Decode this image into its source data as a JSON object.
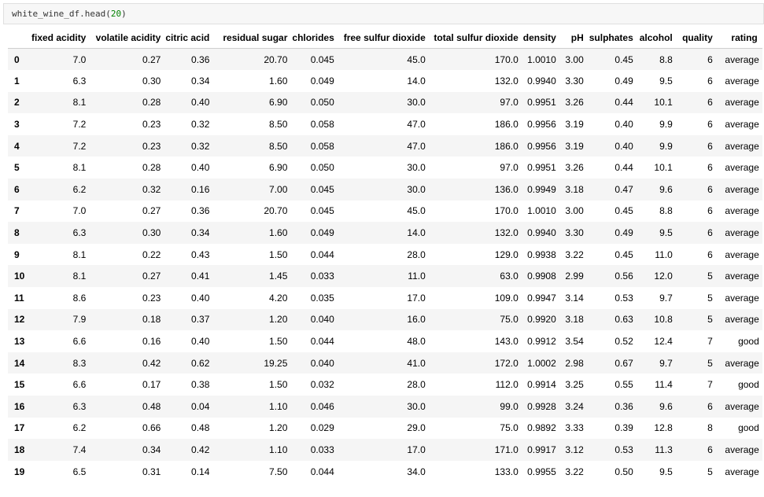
{
  "cell": {
    "code_prefix": "white_wine_df.head(",
    "code_arg": "20",
    "code_suffix": ")"
  },
  "table": {
    "columns": [
      "fixed acidity",
      "volatile acidity",
      "citric acid",
      "residual sugar",
      "chlorides",
      "free sulfur dioxide",
      "total sulfur dioxide",
      "density",
      "pH",
      "sulphates",
      "alcohol",
      "quality",
      "rating"
    ],
    "rows": [
      [
        "0",
        "7.0",
        "0.27",
        "0.36",
        "20.70",
        "0.045",
        "45.0",
        "170.0",
        "1.0010",
        "3.00",
        "0.45",
        "8.8",
        "6",
        "average"
      ],
      [
        "1",
        "6.3",
        "0.30",
        "0.34",
        "1.60",
        "0.049",
        "14.0",
        "132.0",
        "0.9940",
        "3.30",
        "0.49",
        "9.5",
        "6",
        "average"
      ],
      [
        "2",
        "8.1",
        "0.28",
        "0.40",
        "6.90",
        "0.050",
        "30.0",
        "97.0",
        "0.9951",
        "3.26",
        "0.44",
        "10.1",
        "6",
        "average"
      ],
      [
        "3",
        "7.2",
        "0.23",
        "0.32",
        "8.50",
        "0.058",
        "47.0",
        "186.0",
        "0.9956",
        "3.19",
        "0.40",
        "9.9",
        "6",
        "average"
      ],
      [
        "4",
        "7.2",
        "0.23",
        "0.32",
        "8.50",
        "0.058",
        "47.0",
        "186.0",
        "0.9956",
        "3.19",
        "0.40",
        "9.9",
        "6",
        "average"
      ],
      [
        "5",
        "8.1",
        "0.28",
        "0.40",
        "6.90",
        "0.050",
        "30.0",
        "97.0",
        "0.9951",
        "3.26",
        "0.44",
        "10.1",
        "6",
        "average"
      ],
      [
        "6",
        "6.2",
        "0.32",
        "0.16",
        "7.00",
        "0.045",
        "30.0",
        "136.0",
        "0.9949",
        "3.18",
        "0.47",
        "9.6",
        "6",
        "average"
      ],
      [
        "7",
        "7.0",
        "0.27",
        "0.36",
        "20.70",
        "0.045",
        "45.0",
        "170.0",
        "1.0010",
        "3.00",
        "0.45",
        "8.8",
        "6",
        "average"
      ],
      [
        "8",
        "6.3",
        "0.30",
        "0.34",
        "1.60",
        "0.049",
        "14.0",
        "132.0",
        "0.9940",
        "3.30",
        "0.49",
        "9.5",
        "6",
        "average"
      ],
      [
        "9",
        "8.1",
        "0.22",
        "0.43",
        "1.50",
        "0.044",
        "28.0",
        "129.0",
        "0.9938",
        "3.22",
        "0.45",
        "11.0",
        "6",
        "average"
      ],
      [
        "10",
        "8.1",
        "0.27",
        "0.41",
        "1.45",
        "0.033",
        "11.0",
        "63.0",
        "0.9908",
        "2.99",
        "0.56",
        "12.0",
        "5",
        "average"
      ],
      [
        "11",
        "8.6",
        "0.23",
        "0.40",
        "4.20",
        "0.035",
        "17.0",
        "109.0",
        "0.9947",
        "3.14",
        "0.53",
        "9.7",
        "5",
        "average"
      ],
      [
        "12",
        "7.9",
        "0.18",
        "0.37",
        "1.20",
        "0.040",
        "16.0",
        "75.0",
        "0.9920",
        "3.18",
        "0.63",
        "10.8",
        "5",
        "average"
      ],
      [
        "13",
        "6.6",
        "0.16",
        "0.40",
        "1.50",
        "0.044",
        "48.0",
        "143.0",
        "0.9912",
        "3.54",
        "0.52",
        "12.4",
        "7",
        "good"
      ],
      [
        "14",
        "8.3",
        "0.42",
        "0.62",
        "19.25",
        "0.040",
        "41.0",
        "172.0",
        "1.0002",
        "2.98",
        "0.67",
        "9.7",
        "5",
        "average"
      ],
      [
        "15",
        "6.6",
        "0.17",
        "0.38",
        "1.50",
        "0.032",
        "28.0",
        "112.0",
        "0.9914",
        "3.25",
        "0.55",
        "11.4",
        "7",
        "good"
      ],
      [
        "16",
        "6.3",
        "0.48",
        "0.04",
        "1.10",
        "0.046",
        "30.0",
        "99.0",
        "0.9928",
        "3.24",
        "0.36",
        "9.6",
        "6",
        "average"
      ],
      [
        "17",
        "6.2",
        "0.66",
        "0.48",
        "1.20",
        "0.029",
        "29.0",
        "75.0",
        "0.9892",
        "3.33",
        "0.39",
        "12.8",
        "8",
        "good"
      ],
      [
        "18",
        "7.4",
        "0.34",
        "0.42",
        "1.10",
        "0.033",
        "17.0",
        "171.0",
        "0.9917",
        "3.12",
        "0.53",
        "11.3",
        "6",
        "average"
      ],
      [
        "19",
        "6.5",
        "0.31",
        "0.14",
        "7.50",
        "0.044",
        "34.0",
        "133.0",
        "0.9955",
        "3.22",
        "0.50",
        "9.5",
        "5",
        "average"
      ]
    ]
  }
}
